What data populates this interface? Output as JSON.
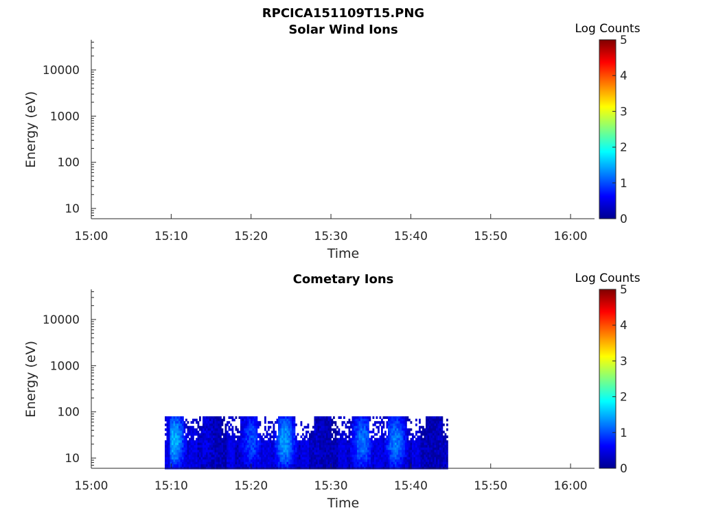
{
  "figure_title": "RPCICA151109T15.PNG",
  "chart_data": [
    {
      "type": "heatmap",
      "title": "Solar Wind Ions",
      "xlabel": "Time",
      "ylabel": "Energy (eV)",
      "x_ticks": [
        "15:00",
        "15:10",
        "15:20",
        "15:30",
        "15:40",
        "15:50",
        "16:00"
      ],
      "xlim_minutes": [
        0,
        63
      ],
      "y_scale": "log",
      "y_ticks": [
        "10",
        "100",
        "1000",
        "10000"
      ],
      "ylim": [
        6,
        45000
      ],
      "colorbar_label": "Log Counts",
      "colorbar_ticks": [
        "0",
        "1",
        "2",
        "3",
        "4",
        "5"
      ],
      "clim": [
        0,
        5
      ],
      "colormap": "jet",
      "grid": false,
      "data": []
    },
    {
      "type": "heatmap",
      "title": "Cometary Ions",
      "xlabel": "Time",
      "ylabel": "Energy (eV)",
      "x_ticks": [
        "15:00",
        "15:10",
        "15:20",
        "15:30",
        "15:40",
        "15:50",
        "16:00"
      ],
      "xlim_minutes": [
        0,
        63
      ],
      "y_scale": "log",
      "y_ticks": [
        "10",
        "100",
        "1000",
        "10000"
      ],
      "ylim": [
        6,
        45000
      ],
      "colorbar_label": "Log Counts",
      "colorbar_ticks": [
        "0",
        "1",
        "2",
        "3",
        "4",
        "5"
      ],
      "clim": [
        0,
        5
      ],
      "colormap": "jet",
      "grid": false,
      "data_time_range_minutes": [
        9.2,
        44.7
      ],
      "data_energy_range": [
        6,
        80
      ],
      "data_peak_log_counts": 2.3
    }
  ]
}
